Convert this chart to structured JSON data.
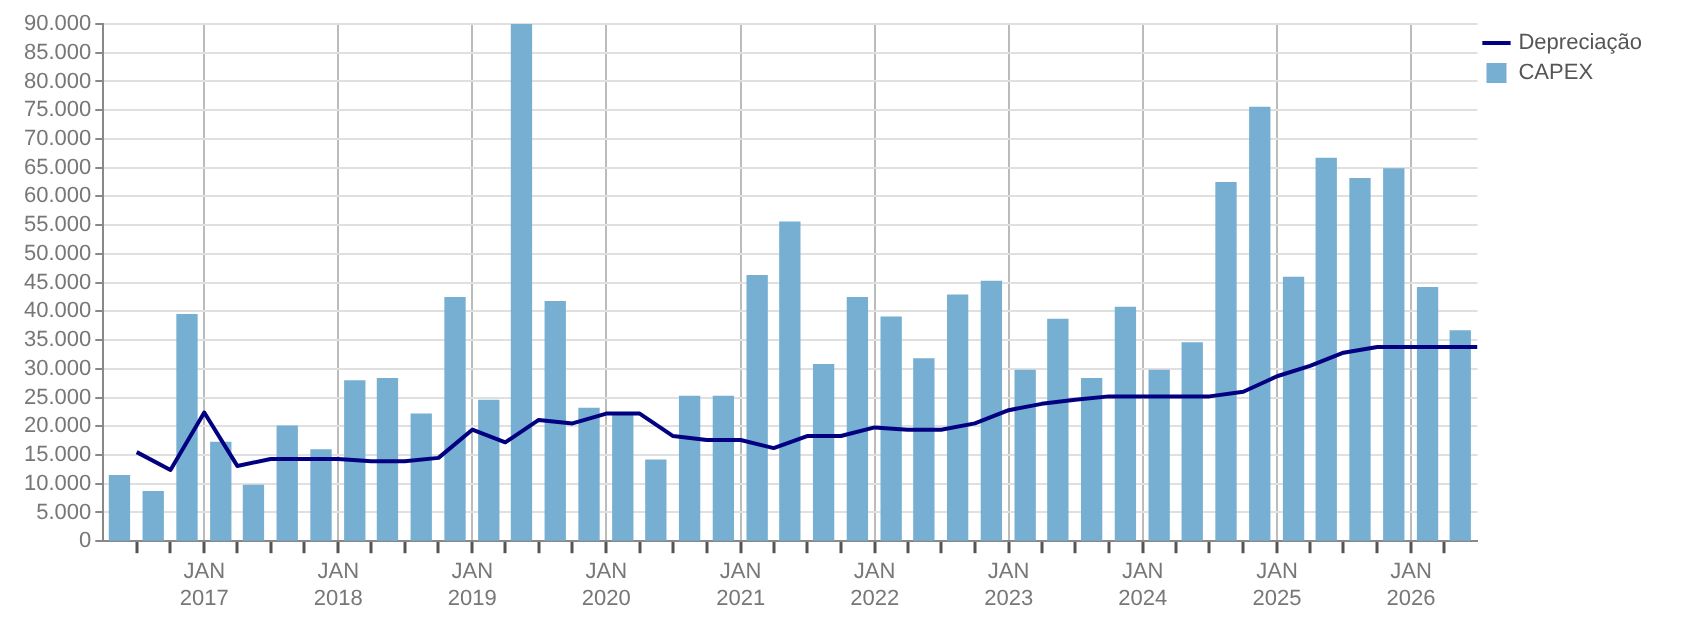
{
  "chart_data": {
    "type": "bar",
    "x": [
      "2016-05-15",
      "2016-08-15",
      "2016-11-15",
      "2017-02-15",
      "2017-05-15",
      "2017-08-15",
      "2017-11-15",
      "2018-02-15",
      "2018-05-15",
      "2018-08-15",
      "2018-11-15",
      "2019-02-15",
      "2019-05-15",
      "2019-08-15",
      "2019-11-15",
      "2020-02-15",
      "2020-05-15",
      "2020-08-15",
      "2020-11-15",
      "2021-02-15",
      "2021-05-15",
      "2021-08-15",
      "2021-11-15",
      "2022-02-15",
      "2022-05-15",
      "2022-08-15",
      "2022-11-15",
      "2023-02-15",
      "2023-05-15",
      "2023-08-15",
      "2023-11-15",
      "2024-02-15",
      "2024-05-15",
      "2024-08-15",
      "2024-11-15",
      "2025-02-15",
      "2025-05-15",
      "2025-08-15",
      "2025-11-15",
      "2026-02-15",
      "2026-05-15"
    ],
    "series": [
      {
        "name": "CAPEX",
        "color": "#76afd1",
        "values": [
          11400,
          8600,
          39400,
          17200,
          9700,
          20000,
          15900,
          27900,
          28300,
          22100,
          42400,
          24500,
          90000,
          41700,
          23100,
          22300,
          14100,
          25200,
          25200,
          46200,
          55500,
          30700,
          42400,
          39000,
          31700,
          42800,
          45200,
          29700,
          38600,
          28300,
          40700,
          29700,
          34500,
          62400,
          75500,
          45900,
          66600,
          63100,
          64800,
          44100,
          36600
        ]
      },
      {
        "name": "Depreciação",
        "type": "line",
        "color": "#000080",
        "x": [
          "2016-07-01",
          "2016-10-01",
          "2017-01-01",
          "2017-04-01",
          "2017-07-01",
          "2017-10-01",
          "2018-01-01",
          "2018-04-01",
          "2018-07-01",
          "2018-10-01",
          "2019-01-01",
          "2019-04-01",
          "2019-07-01",
          "2019-10-01",
          "2020-01-01",
          "2020-04-01",
          "2020-07-01",
          "2020-10-01",
          "2021-01-01",
          "2021-04-01",
          "2021-07-01",
          "2021-10-01",
          "2022-01-01",
          "2022-04-01",
          "2022-07-01",
          "2022-10-01",
          "2023-01-01",
          "2023-04-01",
          "2023-07-01",
          "2023-10-01",
          "2024-01-01",
          "2024-04-01",
          "2024-07-01",
          "2024-10-01",
          "2025-01-01",
          "2025-04-01",
          "2025-07-01",
          "2025-10-01",
          "2026-01-01",
          "2026-04-01",
          "2026-07-01"
        ],
        "values": [
          15500,
          12400,
          22400,
          13100,
          14300,
          14300,
          14300,
          13900,
          13900,
          14500,
          19400,
          17200,
          21100,
          20500,
          22200,
          22200,
          18300,
          17600,
          17600,
          16200,
          18300,
          18300,
          19800,
          19400,
          19400,
          20500,
          22800,
          23900,
          24600,
          25200,
          25200,
          25200,
          25200,
          26000,
          28700,
          30500,
          32800,
          33800,
          33800,
          33800,
          33800
        ]
      }
    ],
    "xlim": [
      "2016-04-01",
      "2026-07-01"
    ],
    "xticks": [
      {
        "value": "2016-07-01",
        "label": null
      },
      {
        "value": "2016-10-01",
        "label": null
      },
      {
        "value": "2017-01-01",
        "label": "JAN 2017"
      },
      {
        "value": "2017-04-01",
        "label": null
      },
      {
        "value": "2017-07-01",
        "label": null
      },
      {
        "value": "2017-10-01",
        "label": null
      },
      {
        "value": "2018-01-01",
        "label": "JAN 2018"
      },
      {
        "value": "2018-04-01",
        "label": null
      },
      {
        "value": "2018-07-01",
        "label": null
      },
      {
        "value": "2018-10-01",
        "label": null
      },
      {
        "value": "2019-01-01",
        "label": "JAN 2019"
      },
      {
        "value": "2019-04-01",
        "label": null
      },
      {
        "value": "2019-07-01",
        "label": null
      },
      {
        "value": "2019-10-01",
        "label": null
      },
      {
        "value": "2020-01-01",
        "label": "JAN 2020"
      },
      {
        "value": "2020-04-01",
        "label": null
      },
      {
        "value": "2020-07-01",
        "label": null
      },
      {
        "value": "2020-10-01",
        "label": null
      },
      {
        "value": "2021-01-01",
        "label": "JAN 2021"
      },
      {
        "value": "2021-04-01",
        "label": null
      },
      {
        "value": "2021-07-01",
        "label": null
      },
      {
        "value": "2021-10-01",
        "label": null
      },
      {
        "value": "2022-01-01",
        "label": "JAN 2022"
      },
      {
        "value": "2022-04-01",
        "label": null
      },
      {
        "value": "2022-07-01",
        "label": null
      },
      {
        "value": "2022-10-01",
        "label": null
      },
      {
        "value": "2023-01-01",
        "label": "JAN 2023"
      },
      {
        "value": "2023-04-01",
        "label": null
      },
      {
        "value": "2023-07-01",
        "label": null
      },
      {
        "value": "2023-10-01",
        "label": null
      },
      {
        "value": "2024-01-01",
        "label": "JAN 2024"
      },
      {
        "value": "2024-04-01",
        "label": null
      },
      {
        "value": "2024-07-01",
        "label": null
      },
      {
        "value": "2024-10-01",
        "label": null
      },
      {
        "value": "2025-01-01",
        "label": "JAN 2025"
      },
      {
        "value": "2025-04-01",
        "label": null
      },
      {
        "value": "2025-07-01",
        "label": null
      },
      {
        "value": "2025-10-01",
        "label": null
      },
      {
        "value": "2026-01-01",
        "label": "JAN 2026"
      },
      {
        "value": "2026-04-01",
        "label": null
      }
    ],
    "ylim": [
      0,
      90000
    ],
    "yticks": [
      {
        "value": 0,
        "label": "0"
      },
      {
        "value": 5000,
        "label": "5.000"
      },
      {
        "value": 10000,
        "label": "10.000"
      },
      {
        "value": 15000,
        "label": "15.000"
      },
      {
        "value": 20000,
        "label": "20.000"
      },
      {
        "value": 25000,
        "label": "25.000"
      },
      {
        "value": 30000,
        "label": "30.000"
      },
      {
        "value": 35000,
        "label": "35.000"
      },
      {
        "value": 40000,
        "label": "40.000"
      },
      {
        "value": 45000,
        "label": "45.000"
      },
      {
        "value": 50000,
        "label": "50.000"
      },
      {
        "value": 55000,
        "label": "55.000"
      },
      {
        "value": 60000,
        "label": "60.000"
      },
      {
        "value": 65000,
        "label": "65.000"
      },
      {
        "value": 70000,
        "label": "70.000"
      },
      {
        "value": 75000,
        "label": "75.000"
      },
      {
        "value": 80000,
        "label": "80.000"
      },
      {
        "value": 85000,
        "label": "85.000"
      },
      {
        "value": 90000,
        "label": "90.000"
      }
    ],
    "grid": true,
    "legend": "top right",
    "marker": "none",
    "line_style": "solid"
  }
}
